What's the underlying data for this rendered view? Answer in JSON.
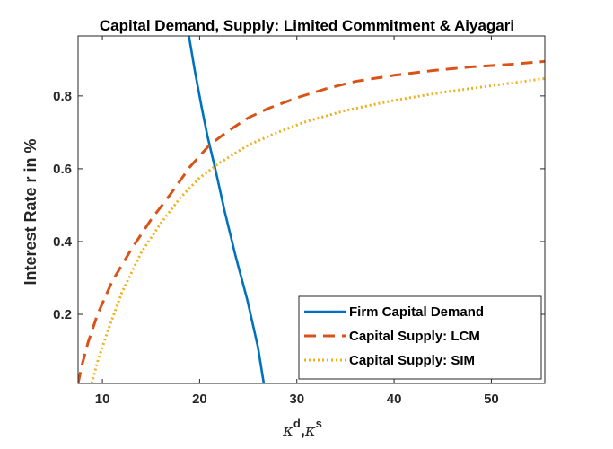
{
  "chart_data": {
    "type": "line",
    "title": "Capital Demand, Supply: Limited Commitment & Aiyagari",
    "xlabel": {
      "symbol1": "κ",
      "sup1": "d",
      "sep": ",",
      "symbol2": "κ",
      "sup2": "s"
    },
    "ylabel": "Interest Rate r in %",
    "xlim": [
      7.5,
      55.5
    ],
    "ylim": [
      0.01,
      0.965
    ],
    "xticks": [
      10,
      20,
      30,
      40,
      50
    ],
    "yticks": [
      0.2,
      0.4,
      0.6,
      0.8
    ],
    "xtick_labels": [
      "10",
      "20",
      "30",
      "40",
      "50"
    ],
    "ytick_labels": [
      "0.2",
      "0.4",
      "0.6",
      "0.8"
    ],
    "grid": false,
    "legend_position": "bottom-right",
    "series": [
      {
        "name": "Firm Capital Demand",
        "color": "#0072BD",
        "style": "solid",
        "x": [
          18.9,
          19.5,
          20.2,
          20.8,
          21.6,
          22.6,
          23.7,
          24.9,
          26.0,
          26.6
        ],
        "y": [
          0.965,
          0.87,
          0.77,
          0.69,
          0.6,
          0.48,
          0.36,
          0.24,
          0.11,
          0.01
        ]
      },
      {
        "name": "Capital Supply: LCM",
        "color": "#D95319",
        "style": "dashed",
        "x": [
          7.5,
          7.9,
          8.5,
          9.5,
          11,
          13,
          15,
          17,
          19,
          21,
          23,
          25,
          27,
          30,
          33,
          36,
          40,
          44,
          48,
          52,
          55.5
        ],
        "y": [
          0.01,
          0.06,
          0.12,
          0.2,
          0.29,
          0.38,
          0.46,
          0.53,
          0.605,
          0.665,
          0.705,
          0.74,
          0.765,
          0.795,
          0.82,
          0.84,
          0.857,
          0.87,
          0.88,
          0.887,
          0.895
        ]
      },
      {
        "name": "Capital Supply: SIM",
        "color": "#EDB120",
        "style": "dotted",
        "x": [
          8.9,
          9.5,
          10.5,
          12,
          14,
          16,
          18,
          20,
          22,
          25,
          28,
          31,
          35,
          40,
          45,
          50,
          55.5
        ],
        "y": [
          0.01,
          0.07,
          0.15,
          0.26,
          0.37,
          0.45,
          0.52,
          0.575,
          0.615,
          0.665,
          0.7,
          0.73,
          0.76,
          0.788,
          0.81,
          0.828,
          0.848
        ]
      }
    ]
  }
}
